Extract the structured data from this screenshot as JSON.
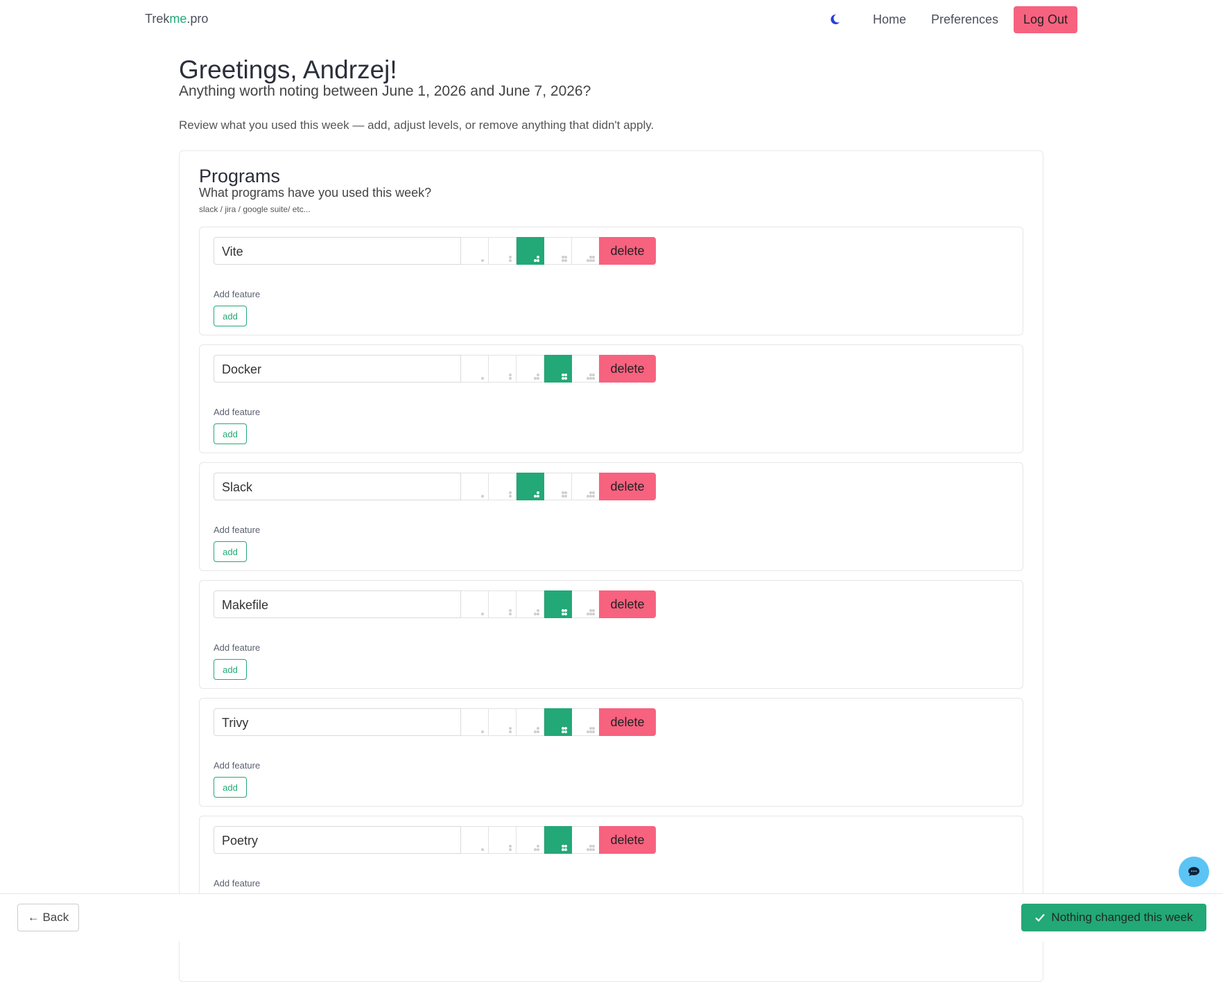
{
  "nav": {
    "logo": {
      "prefix": "Trek",
      "highlight": "me",
      "suffix": ".pro"
    },
    "links": [
      "Home",
      "Preferences"
    ],
    "logout": "Log Out"
  },
  "header": {
    "title": "Greetings, Andrzej!",
    "subtitle": "Anything worth noting between June 1, 2026 and June 7, 2026?",
    "intro": "Review what you used this week — add, adjust levels, or remove anything that didn't apply."
  },
  "programs": {
    "title": "Programs",
    "question": "What programs have you used this week?",
    "hint": "slack / jira / google suite/ etc...",
    "items": [
      {
        "name": "Vite",
        "level": 3
      },
      {
        "name": "Docker",
        "level": 4
      },
      {
        "name": "Slack",
        "level": 3
      },
      {
        "name": "Makefile",
        "level": 4
      },
      {
        "name": "Trivy",
        "level": 4
      },
      {
        "name": "Poetry",
        "level": 4
      }
    ],
    "delete_label": "delete",
    "add_feature_label": "Add feature",
    "add_label": "add"
  },
  "footer": {
    "back": "← Back",
    "nothing_changed": "Nothing changed this week"
  }
}
